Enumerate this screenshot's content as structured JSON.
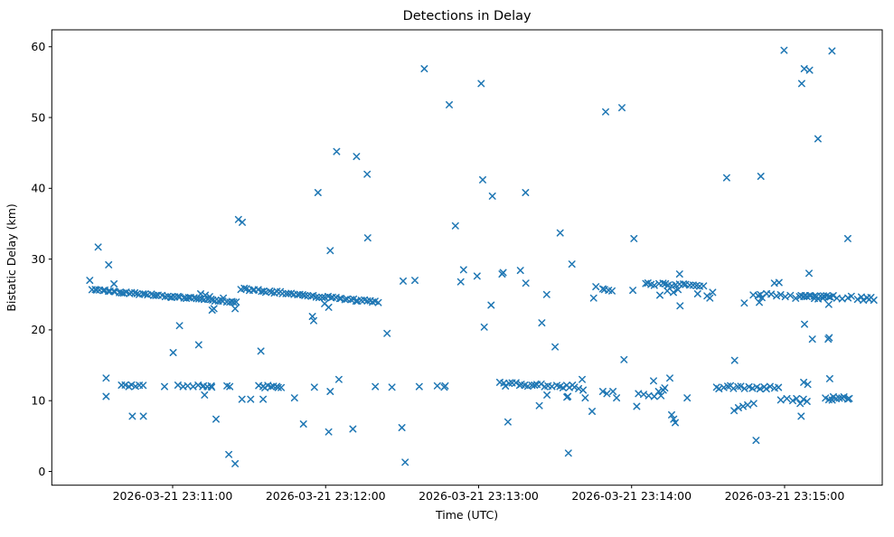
{
  "chart_data": {
    "type": "scatter",
    "marker": "x",
    "marker_color": "#1f77b4",
    "title": "Detections in Delay",
    "xlabel": "Time (UTC)",
    "ylabel": "Bistatic Delay (km)",
    "x_unit": "seconds after 2026-03-21 23:10:00 UTC",
    "xlim": [
      12.6,
      338.3
    ],
    "ylim": [
      -1.94,
      62.39
    ],
    "grid": false,
    "legend": null,
    "x_ticks": [
      {
        "t": 60,
        "label": "2026-03-21 23:11:00"
      },
      {
        "t": 120,
        "label": "2026-03-21 23:12:00"
      },
      {
        "t": 180,
        "label": "2026-03-21 23:13:00"
      },
      {
        "t": 240,
        "label": "2026-03-21 23:14:00"
      },
      {
        "t": 300,
        "label": "2026-03-21 23:15:00"
      }
    ],
    "y_ticks": [
      0,
      10,
      20,
      30,
      40,
      50,
      60
    ],
    "dense_runs": [
      {
        "name": "chirp-descending-1",
        "t0": 28.3,
        "t1": 85.2,
        "v0": 25.7,
        "v1": 23.9,
        "n": 55,
        "jitter": 0.12
      },
      {
        "name": "chirp-descending-2",
        "t0": 86.9,
        "t1": 140.5,
        "v0": 25.8,
        "v1": 23.9,
        "n": 50,
        "jitter": 0.15
      },
      {
        "name": "cluster-2314-core",
        "t0": 245.2,
        "t1": 268.2,
        "v0": 26.5,
        "v1": 26.3,
        "n": 18,
        "jitter": 0.2
      },
      {
        "name": "band-2315-main",
        "t0": 287.7,
        "t1": 333.8,
        "v0": 24.9,
        "v1": 24.4,
        "n": 26,
        "jitter": 0.3
      },
      {
        "name": "band-2315-bold",
        "t0": 306.0,
        "t1": 318.0,
        "v0": 24.7,
        "v1": 24.7,
        "n": 10,
        "jitter": 0.15
      },
      {
        "name": "row12-left-a",
        "t0": 39.9,
        "t1": 48.2,
        "v0": 12.1,
        "v1": 12.1,
        "n": 7,
        "jitter": 0.15
      },
      {
        "name": "row12-left-b",
        "t0": 94.0,
        "t1": 102.9,
        "v0": 12.0,
        "v1": 12.0,
        "n": 9,
        "jitter": 0.2
      },
      {
        "name": "row12-2313-a",
        "t0": 188.4,
        "t1": 204.4,
        "v0": 12.4,
        "v1": 12.1,
        "n": 14,
        "jitter": 0.3
      },
      {
        "name": "row12-2313-b",
        "t0": 206.2,
        "t1": 215.7,
        "v0": 12.2,
        "v1": 12.0,
        "n": 8,
        "jitter": 0.25
      },
      {
        "name": "row12-2314",
        "t0": 273.1,
        "t1": 297.3,
        "v0": 11.9,
        "v1": 11.9,
        "n": 18,
        "jitter": 0.25
      },
      {
        "name": "cluster-2315-low",
        "t0": 316.3,
        "t1": 325.6,
        "v0": 10.3,
        "v1": 10.3,
        "n": 10,
        "jitter": 0.25
      }
    ],
    "points": [
      [
        158.7,
        56.9
      ],
      [
        181.0,
        54.8
      ],
      [
        168.5,
        51.8
      ],
      [
        229.8,
        50.8
      ],
      [
        236.2,
        51.4
      ],
      [
        124.3,
        45.2
      ],
      [
        132.1,
        44.5
      ],
      [
        136.3,
        42.0
      ],
      [
        181.6,
        41.2
      ],
      [
        299.8,
        59.5
      ],
      [
        318.6,
        59.4
      ],
      [
        307.7,
        56.9
      ],
      [
        309.8,
        56.7
      ],
      [
        306.7,
        54.8
      ],
      [
        313.1,
        47.0
      ],
      [
        277.3,
        41.5
      ],
      [
        290.7,
        41.7
      ],
      [
        117.0,
        39.4
      ],
      [
        85.8,
        35.6
      ],
      [
        87.3,
        35.2
      ],
      [
        30.8,
        31.7
      ],
      [
        34.9,
        29.2
      ],
      [
        27.5,
        27.0
      ],
      [
        37.0,
        26.5
      ],
      [
        185.4,
        38.9
      ],
      [
        198.4,
        39.4
      ],
      [
        170.9,
        34.7
      ],
      [
        136.5,
        33.0
      ],
      [
        121.8,
        31.2
      ],
      [
        212.0,
        33.7
      ],
      [
        216.6,
        29.3
      ],
      [
        174.1,
        28.5
      ],
      [
        173.0,
        26.8
      ],
      [
        179.4,
        27.6
      ],
      [
        189.2,
        27.9
      ],
      [
        189.6,
        28.1
      ],
      [
        196.4,
        28.4
      ],
      [
        198.5,
        26.6
      ],
      [
        150.4,
        26.9
      ],
      [
        155.0,
        27.0
      ],
      [
        206.7,
        25.0
      ],
      [
        225.1,
        24.5
      ],
      [
        226.0,
        26.1
      ],
      [
        229.4,
        25.7
      ],
      [
        231.0,
        25.6
      ],
      [
        240.9,
        32.9
      ],
      [
        324.8,
        32.9
      ],
      [
        258.8,
        27.9
      ],
      [
        309.6,
        28.0
      ],
      [
        184.9,
        23.5
      ],
      [
        182.2,
        20.4
      ],
      [
        204.8,
        21.0
      ],
      [
        144.1,
        19.5
      ],
      [
        210.0,
        17.6
      ],
      [
        114.8,
        21.9
      ],
      [
        115.3,
        21.3
      ],
      [
        119.6,
        23.7
      ],
      [
        121.2,
        23.2
      ],
      [
        62.7,
        20.6
      ],
      [
        75.5,
        22.8
      ],
      [
        76.2,
        23.0
      ],
      [
        84.5,
        23.0
      ],
      [
        71.0,
        25.1
      ],
      [
        72.8,
        24.9
      ],
      [
        74.5,
        24.7
      ],
      [
        79.9,
        24.5
      ],
      [
        228.7,
        25.8
      ],
      [
        232.3,
        25.5
      ],
      [
        254.0,
        25.5
      ],
      [
        256.4,
        25.3
      ],
      [
        258.2,
        25.7
      ],
      [
        251.1,
        24.9
      ],
      [
        265.9,
        25.1
      ],
      [
        269.6,
        24.8
      ],
      [
        271.8,
        25.3
      ],
      [
        240.5,
        25.6
      ],
      [
        270.7,
        24.5
      ],
      [
        259.0,
        23.4
      ],
      [
        296.0,
        26.6
      ],
      [
        297.8,
        26.7
      ],
      [
        284.2,
        23.8
      ],
      [
        290.1,
        23.9
      ],
      [
        290.5,
        25.0
      ],
      [
        317.3,
        23.6
      ],
      [
        330.9,
        24.2
      ],
      [
        333.2,
        24.3
      ],
      [
        335.0,
        24.2
      ],
      [
        60.2,
        16.8
      ],
      [
        70.2,
        17.9
      ],
      [
        94.6,
        17.0
      ],
      [
        33.9,
        13.2
      ],
      [
        33.9,
        10.6
      ],
      [
        56.8,
        12.0
      ],
      [
        62.1,
        12.2
      ],
      [
        64.1,
        12.0
      ],
      [
        65.9,
        12.1
      ],
      [
        68.0,
        12.0
      ],
      [
        70.0,
        12.2
      ],
      [
        71.8,
        12.0
      ],
      [
        72.1,
        12.1
      ],
      [
        73.6,
        12.0
      ],
      [
        75.1,
        12.1
      ],
      [
        75.3,
        11.9
      ],
      [
        81.3,
        12.1
      ],
      [
        82.4,
        12.0
      ],
      [
        115.6,
        11.9
      ],
      [
        72.5,
        10.8
      ],
      [
        87.2,
        10.2
      ],
      [
        90.6,
        10.2
      ],
      [
        95.5,
        10.2
      ],
      [
        107.8,
        10.4
      ],
      [
        44.2,
        7.8
      ],
      [
        48.5,
        7.8
      ],
      [
        77.0,
        7.4
      ],
      [
        111.3,
        6.7
      ],
      [
        121.2,
        5.6
      ],
      [
        82.0,
        2.4
      ],
      [
        84.5,
        1.1
      ],
      [
        125.2,
        13.0
      ],
      [
        121.8,
        11.3
      ],
      [
        139.5,
        12.0
      ],
      [
        146.0,
        11.9
      ],
      [
        156.7,
        12.0
      ],
      [
        163.8,
        12.1
      ],
      [
        166.5,
        11.9
      ],
      [
        166.9,
        12.1
      ],
      [
        130.7,
        6.0
      ],
      [
        149.9,
        6.2
      ],
      [
        151.2,
        1.3
      ],
      [
        191.5,
        7.0
      ],
      [
        215.2,
        2.6
      ],
      [
        216.8,
        12.2
      ],
      [
        217.6,
        11.9
      ],
      [
        219.2,
        11.7
      ],
      [
        220.6,
        13.0
      ],
      [
        221.0,
        11.5
      ],
      [
        206.8,
        10.8
      ],
      [
        214.6,
        10.5
      ],
      [
        215.0,
        10.6
      ],
      [
        221.8,
        10.4
      ],
      [
        203.8,
        9.3
      ],
      [
        224.5,
        8.5
      ],
      [
        228.7,
        11.3
      ],
      [
        230.3,
        11.0
      ],
      [
        232.7,
        11.3
      ],
      [
        234.1,
        10.4
      ],
      [
        237.0,
        15.8
      ],
      [
        248.6,
        12.8
      ],
      [
        255.0,
        13.2
      ],
      [
        253.0,
        11.8
      ],
      [
        251.5,
        10.7
      ],
      [
        242.7,
        11.0
      ],
      [
        244.7,
        10.9
      ],
      [
        246.7,
        10.7
      ],
      [
        248.9,
        10.6
      ],
      [
        250.6,
        11.3
      ],
      [
        252.4,
        11.5
      ],
      [
        242.0,
        9.2
      ],
      [
        255.7,
        8.0
      ],
      [
        256.5,
        7.4
      ],
      [
        257.1,
        6.9
      ],
      [
        261.8,
        10.4
      ],
      [
        280.4,
        15.7
      ],
      [
        280.2,
        8.6
      ],
      [
        281.9,
        9.0
      ],
      [
        283.7,
        9.2
      ],
      [
        285.5,
        9.4
      ],
      [
        287.9,
        9.6
      ],
      [
        288.8,
        4.4
      ],
      [
        298.5,
        10.1
      ],
      [
        300.9,
        10.3
      ],
      [
        303.2,
        10.0
      ],
      [
        304.7,
        10.3
      ],
      [
        306.1,
        9.6
      ],
      [
        307.4,
        10.2
      ],
      [
        308.8,
        9.9
      ],
      [
        306.5,
        7.8
      ],
      [
        307.8,
        20.8
      ],
      [
        310.9,
        18.7
      ],
      [
        317.1,
        18.7
      ],
      [
        317.5,
        18.9
      ],
      [
        317.7,
        13.1
      ],
      [
        307.5,
        12.6
      ],
      [
        309.1,
        12.3
      ]
    ]
  }
}
